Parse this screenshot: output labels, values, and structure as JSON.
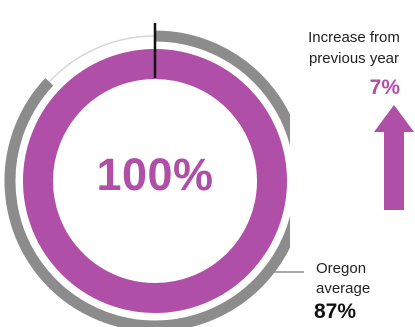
{
  "chart_data": {
    "type": "donut",
    "value_label": "100%",
    "value_percent": 100,
    "comparison": {
      "label_lines": [
        "Oregon",
        "average"
      ],
      "value_label": "87%",
      "value_percent": 87
    },
    "change": {
      "label_lines": [
        "Increase from",
        "previous year"
      ],
      "value_label": "7%",
      "direction": "up"
    }
  },
  "colors": {
    "primary": "#b04fa7",
    "comparison_ring": "#8c8c8c",
    "track": "#d6d6d6",
    "marker": "#111111"
  },
  "icons": {
    "change": "up-arrow-icon"
  }
}
